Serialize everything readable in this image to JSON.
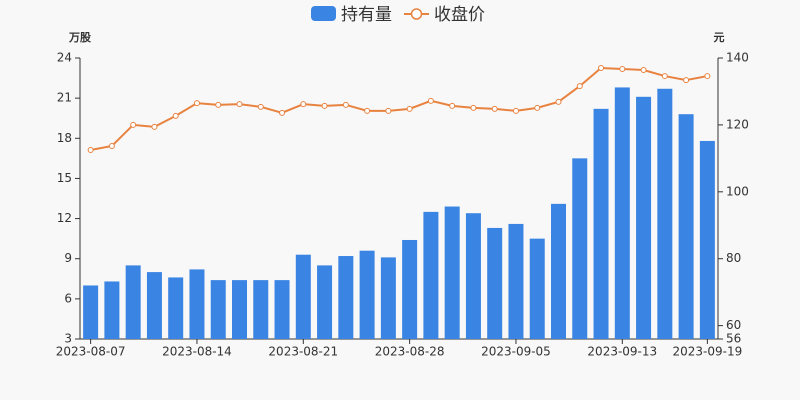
{
  "chart_data": {
    "type": "bar",
    "y_label": "万股",
    "y2_label": "元",
    "categories": [
      "2023-08-07",
      null,
      null,
      null,
      null,
      "2023-08-14",
      null,
      null,
      null,
      null,
      "2023-08-21",
      null,
      null,
      null,
      null,
      "2023-08-28",
      null,
      null,
      null,
      null,
      "2023-09-05",
      null,
      null,
      null,
      null,
      "2023-09-13",
      null,
      null,
      null,
      "2023-09-19"
    ],
    "series": [
      {
        "name": "持有量",
        "type": "bar",
        "color": "#3a84e3",
        "values": [
          7.0,
          7.3,
          8.5,
          8.0,
          7.6,
          8.2,
          7.4,
          7.4,
          7.4,
          7.4,
          9.3,
          8.5,
          9.2,
          9.6,
          9.1,
          10.4,
          12.5,
          12.9,
          12.4,
          11.3,
          11.6,
          10.5,
          13.1,
          16.5,
          20.2,
          21.8,
          21.1,
          21.7,
          19.8,
          17.8
        ]
      },
      {
        "name": "收盘价",
        "type": "line",
        "axis": "y2",
        "color": "#e8823f",
        "values": [
          112.5,
          113.7,
          120.0,
          119.4,
          122.7,
          126.5,
          126.0,
          126.2,
          125.4,
          123.6,
          126.2,
          125.7,
          126.0,
          124.2,
          124.2,
          124.8,
          127.2,
          125.7,
          125.1,
          124.8,
          124.2,
          125.1,
          126.9,
          131.6,
          137.0,
          136.7,
          136.4,
          134.6,
          133.4,
          134.6
        ]
      }
    ],
    "ylim": [
      3,
      24
    ],
    "yticks": [
      3,
      6,
      9,
      12,
      15,
      18,
      21,
      24
    ],
    "y2lim": [
      56,
      140
    ],
    "y2ticks": [
      56,
      60,
      80,
      100,
      120,
      140
    ],
    "legend": "top"
  }
}
